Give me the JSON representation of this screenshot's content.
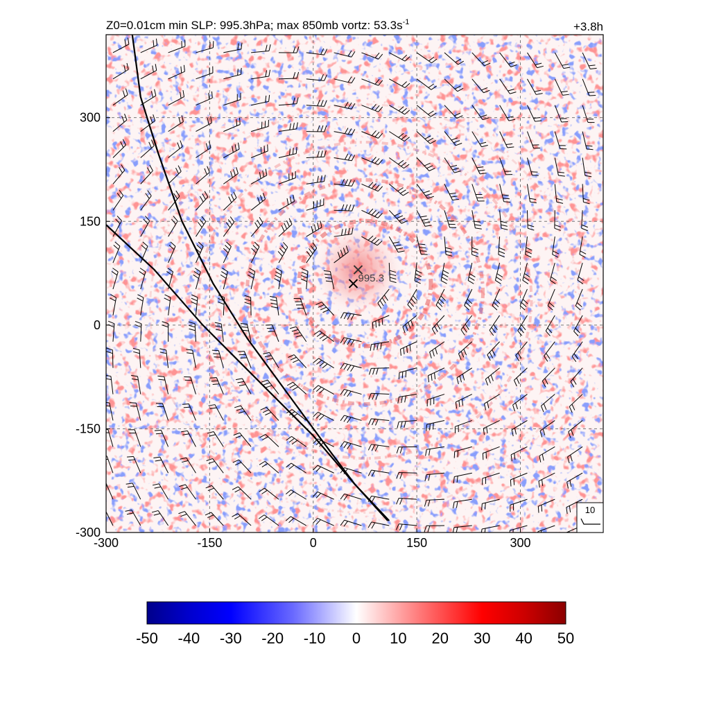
{
  "header": {
    "title_main": "Z0=0.01cm  min SLP: 995.3hPa; max 850mb vortz:  53.3s",
    "title_sup": "-1",
    "time_label": "+3.8h"
  },
  "chart_data": {
    "type": "heatmap",
    "xlim": [
      -300,
      420
    ],
    "ylim": [
      -300,
      420
    ],
    "xticks": [
      "-300",
      "-150",
      "0",
      "150",
      "300"
    ],
    "yticks": [
      "-300",
      "-150",
      "0",
      "150",
      "300"
    ],
    "grid": true,
    "center_markers": [
      {
        "x": 65,
        "y": 80
      },
      {
        "x": 58,
        "y": 60
      }
    ],
    "min_slp_label": "995.3",
    "track_lines": [
      [
        [
          -262,
          420
        ],
        [
          -250,
          330
        ],
        [
          -225,
          250
        ],
        [
          -190,
          150
        ],
        [
          -145,
          60
        ],
        [
          -95,
          -20
        ],
        [
          -40,
          -95
        ],
        [
          15,
          -170
        ],
        [
          60,
          -230
        ],
        [
          110,
          -283
        ]
      ],
      [
        [
          -300,
          145
        ],
        [
          -230,
          80
        ],
        [
          -160,
          0
        ],
        [
          -80,
          -80
        ],
        [
          0,
          -160
        ],
        [
          60,
          -230
        ],
        [
          108,
          -283
        ]
      ]
    ],
    "wind_reference": {
      "label": "10"
    },
    "colorbar": {
      "ticks": [
        "-50",
        "-40",
        "-30",
        "-20",
        "-10",
        "0",
        "10",
        "20",
        "30",
        "40",
        "50"
      ],
      "min": -50,
      "max": 50,
      "colors": [
        "#00008b",
        "#0000ff",
        "#ffffff",
        "#ff0000",
        "#8b0000"
      ]
    }
  }
}
